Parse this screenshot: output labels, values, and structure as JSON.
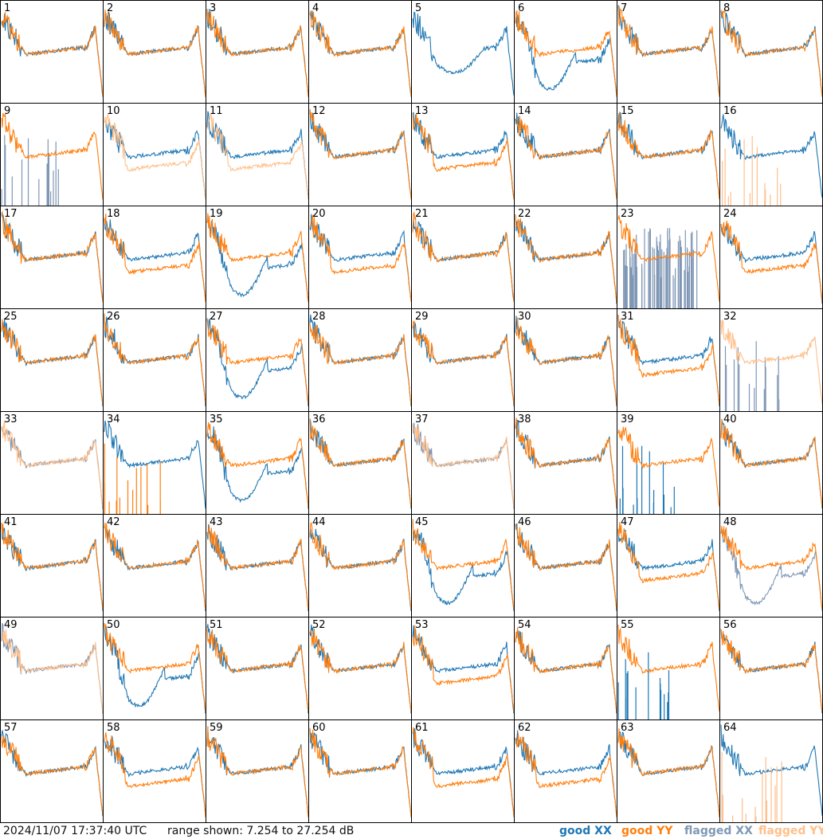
{
  "footer": {
    "timestamp": "2024/11/07 17:37:40 UTC",
    "range_text": "range shown: 7.254 to 27.254 dB",
    "legend": [
      {
        "label": "good XX",
        "color": "#1f77b4"
      },
      {
        "label": "good YY",
        "color": "#ff7f0e"
      },
      {
        "label": "flagged XX",
        "color": "#7f97b5"
      },
      {
        "label": "flagged YY",
        "color": "#ffbf8a"
      }
    ]
  },
  "chart_data": {
    "type": "line",
    "grid": "8x8",
    "units": "dB",
    "range": [
      7.254,
      27.254
    ],
    "series_styles": {
      "good_xx": "#1f77b4",
      "good_yy": "#ff7f0e",
      "flagged_xx": "#7f97b5",
      "flagged_yy": "#ffbf8a"
    },
    "panels": [
      {
        "id": "1",
        "xx": "good",
        "yy": "good",
        "shape_xx": "normal",
        "shape_yy": "normal"
      },
      {
        "id": "2",
        "xx": "good",
        "yy": "good",
        "shape_xx": "normal",
        "shape_yy": "normal"
      },
      {
        "id": "3",
        "xx": "good",
        "yy": "good",
        "shape_xx": "normal",
        "shape_yy": "normal"
      },
      {
        "id": "4",
        "xx": "good",
        "yy": "good",
        "shape_xx": "normal",
        "shape_yy": "normal"
      },
      {
        "id": "5",
        "xx": "good",
        "yy": "none",
        "shape_xx": "dip",
        "shape_yy": "normal"
      },
      {
        "id": "6",
        "xx": "good",
        "yy": "good",
        "shape_xx": "lowdip",
        "shape_yy": "normal"
      },
      {
        "id": "7",
        "xx": "good",
        "yy": "good",
        "shape_xx": "normal",
        "shape_yy": "normal"
      },
      {
        "id": "8",
        "xx": "good",
        "yy": "good",
        "shape_xx": "normal",
        "shape_yy": "normal"
      },
      {
        "id": "9",
        "xx": "flagged",
        "yy": "good",
        "shape_xx": "spikes",
        "shape_yy": "normal"
      },
      {
        "id": "10",
        "xx": "good",
        "yy": "flagged",
        "shape_xx": "normal",
        "shape_yy": "low"
      },
      {
        "id": "11",
        "xx": "good",
        "yy": "flagged",
        "shape_xx": "normal",
        "shape_yy": "low"
      },
      {
        "id": "12",
        "xx": "good",
        "yy": "good",
        "shape_xx": "normal",
        "shape_yy": "normal"
      },
      {
        "id": "13",
        "xx": "good",
        "yy": "good",
        "shape_xx": "normal",
        "shape_yy": "low"
      },
      {
        "id": "14",
        "xx": "good",
        "yy": "good",
        "shape_xx": "normal",
        "shape_yy": "normal"
      },
      {
        "id": "15",
        "xx": "good",
        "yy": "good",
        "shape_xx": "normal",
        "shape_yy": "normal"
      },
      {
        "id": "16",
        "xx": "good",
        "yy": "flagged",
        "shape_xx": "normal",
        "shape_yy": "spikes"
      },
      {
        "id": "17",
        "xx": "good",
        "yy": "good",
        "shape_xx": "normal",
        "shape_yy": "normal"
      },
      {
        "id": "18",
        "xx": "good",
        "yy": "good",
        "shape_xx": "normal",
        "shape_yy": "low"
      },
      {
        "id": "19",
        "xx": "good",
        "yy": "good",
        "shape_xx": "lowdip",
        "shape_yy": "normal"
      },
      {
        "id": "20",
        "xx": "good",
        "yy": "good",
        "shape_xx": "normal",
        "shape_yy": "low"
      },
      {
        "id": "21",
        "xx": "good",
        "yy": "good",
        "shape_xx": "normal",
        "shape_yy": "normal"
      },
      {
        "id": "22",
        "xx": "good",
        "yy": "good",
        "shape_xx": "normal",
        "shape_yy": "normal"
      },
      {
        "id": "23",
        "xx": "flagged",
        "yy": "good",
        "shape_xx": "noise",
        "shape_yy": "normal"
      },
      {
        "id": "24",
        "xx": "good",
        "yy": "good",
        "shape_xx": "normal",
        "shape_yy": "low"
      },
      {
        "id": "25",
        "xx": "good",
        "yy": "good",
        "shape_xx": "normal",
        "shape_yy": "normal"
      },
      {
        "id": "26",
        "xx": "good",
        "yy": "good",
        "shape_xx": "normal",
        "shape_yy": "normal"
      },
      {
        "id": "27",
        "xx": "good",
        "yy": "good",
        "shape_xx": "lowdip",
        "shape_yy": "normal"
      },
      {
        "id": "28",
        "xx": "good",
        "yy": "good",
        "shape_xx": "normal",
        "shape_yy": "normal"
      },
      {
        "id": "29",
        "xx": "good",
        "yy": "good",
        "shape_xx": "normal",
        "shape_yy": "normal"
      },
      {
        "id": "30",
        "xx": "good",
        "yy": "good",
        "shape_xx": "normal",
        "shape_yy": "normal"
      },
      {
        "id": "31",
        "xx": "good",
        "yy": "good",
        "shape_xx": "normal",
        "shape_yy": "low"
      },
      {
        "id": "32",
        "xx": "flagged",
        "yy": "flagged",
        "shape_xx": "spikes",
        "shape_yy": "normal"
      },
      {
        "id": "33",
        "xx": "flagged",
        "yy": "flagged",
        "shape_xx": "normal",
        "shape_yy": "normal"
      },
      {
        "id": "34",
        "xx": "good",
        "yy": "good",
        "shape_xx": "normal",
        "shape_yy": "spikes"
      },
      {
        "id": "35",
        "xx": "good",
        "yy": "good",
        "shape_xx": "lowdip",
        "shape_yy": "normal"
      },
      {
        "id": "36",
        "xx": "good",
        "yy": "good",
        "shape_xx": "normal",
        "shape_yy": "normal"
      },
      {
        "id": "37",
        "xx": "flagged",
        "yy": "flagged",
        "shape_xx": "normal",
        "shape_yy": "normal"
      },
      {
        "id": "38",
        "xx": "good",
        "yy": "good",
        "shape_xx": "normal",
        "shape_yy": "normal"
      },
      {
        "id": "39",
        "xx": "good",
        "yy": "good",
        "shape_xx": "spikes",
        "shape_yy": "normal"
      },
      {
        "id": "40",
        "xx": "good",
        "yy": "good",
        "shape_xx": "normal",
        "shape_yy": "normal"
      },
      {
        "id": "41",
        "xx": "good",
        "yy": "good",
        "shape_xx": "normal",
        "shape_yy": "normal"
      },
      {
        "id": "42",
        "xx": "good",
        "yy": "good",
        "shape_xx": "normal",
        "shape_yy": "normal"
      },
      {
        "id": "43",
        "xx": "good",
        "yy": "good",
        "shape_xx": "normal",
        "shape_yy": "normal"
      },
      {
        "id": "44",
        "xx": "good",
        "yy": "good",
        "shape_xx": "normal",
        "shape_yy": "normal"
      },
      {
        "id": "45",
        "xx": "good",
        "yy": "good",
        "shape_xx": "lowdip",
        "shape_yy": "normal"
      },
      {
        "id": "46",
        "xx": "good",
        "yy": "good",
        "shape_xx": "normal",
        "shape_yy": "normal"
      },
      {
        "id": "47",
        "xx": "good",
        "yy": "good",
        "shape_xx": "normal",
        "shape_yy": "low"
      },
      {
        "id": "48",
        "xx": "flagged",
        "yy": "good",
        "shape_xx": "lowdip",
        "shape_yy": "normal"
      },
      {
        "id": "49",
        "xx": "flagged",
        "yy": "flagged",
        "shape_xx": "normal",
        "shape_yy": "normal"
      },
      {
        "id": "50",
        "xx": "good",
        "yy": "good",
        "shape_xx": "lowdip",
        "shape_yy": "normal"
      },
      {
        "id": "51",
        "xx": "good",
        "yy": "good",
        "shape_xx": "normal",
        "shape_yy": "normal"
      },
      {
        "id": "52",
        "xx": "good",
        "yy": "good",
        "shape_xx": "normal",
        "shape_yy": "normal"
      },
      {
        "id": "53",
        "xx": "good",
        "yy": "good",
        "shape_xx": "normal",
        "shape_yy": "low"
      },
      {
        "id": "54",
        "xx": "good",
        "yy": "good",
        "shape_xx": "normal",
        "shape_yy": "normal"
      },
      {
        "id": "55",
        "xx": "good",
        "yy": "good",
        "shape_xx": "spikes",
        "shape_yy": "normal"
      },
      {
        "id": "56",
        "xx": "good",
        "yy": "good",
        "shape_xx": "normal",
        "shape_yy": "normal"
      },
      {
        "id": "57",
        "xx": "good",
        "yy": "good",
        "shape_xx": "normal",
        "shape_yy": "normal"
      },
      {
        "id": "58",
        "xx": "good",
        "yy": "good",
        "shape_xx": "normal",
        "shape_yy": "low"
      },
      {
        "id": "59",
        "xx": "good",
        "yy": "good",
        "shape_xx": "normal",
        "shape_yy": "normal"
      },
      {
        "id": "60",
        "xx": "good",
        "yy": "good",
        "shape_xx": "normal",
        "shape_yy": "normal"
      },
      {
        "id": "61",
        "xx": "good",
        "yy": "good",
        "shape_xx": "normal",
        "shape_yy": "low"
      },
      {
        "id": "62",
        "xx": "good",
        "yy": "good",
        "shape_xx": "normal",
        "shape_yy": "low"
      },
      {
        "id": "63",
        "xx": "good",
        "yy": "good",
        "shape_xx": "normal",
        "shape_yy": "normal"
      },
      {
        "id": "64",
        "xx": "good",
        "yy": "flagged",
        "shape_xx": "normal",
        "shape_yy": "spikes"
      }
    ]
  }
}
